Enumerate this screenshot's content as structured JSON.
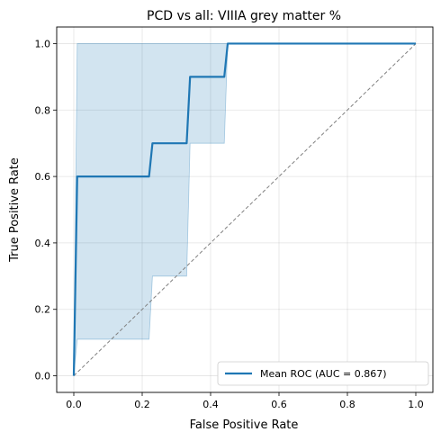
{
  "chart_data": {
    "type": "line",
    "title": "PCD vs all: VIIIA grey matter %",
    "xlabel": "False Positive Rate",
    "ylabel": "True Positive Rate",
    "xlim": [
      -0.05,
      1.05
    ],
    "ylim": [
      -0.05,
      1.05
    ],
    "xticks": [
      "0.0",
      "0.2",
      "0.4",
      "0.6",
      "0.8",
      "1.0"
    ],
    "yticks": [
      "0.0",
      "0.2",
      "0.4",
      "0.6",
      "0.8",
      "1.0"
    ],
    "grid": true,
    "legend_position": "lower-right",
    "series": [
      {
        "name": "Mean ROC (AUC = 0.867)",
        "color": "#1f77b4",
        "x": [
          0.0,
          0.01,
          0.22,
          0.23,
          0.33,
          0.34,
          0.44,
          0.45,
          1.0
        ],
        "y": [
          0.0,
          0.6,
          0.6,
          0.7,
          0.7,
          0.9,
          0.9,
          1.0,
          1.0
        ]
      }
    ],
    "band": {
      "color": "#1f77b4",
      "opacity": 0.2,
      "x": [
        0.0,
        0.01,
        0.22,
        0.23,
        0.33,
        0.34,
        0.44,
        0.45,
        1.0
      ],
      "upper": [
        0.0,
        1.0,
        1.0,
        1.0,
        1.0,
        1.0,
        1.0,
        1.0,
        1.0
      ],
      "lower": [
        0.0,
        0.11,
        0.11,
        0.3,
        0.3,
        0.7,
        0.7,
        1.0,
        1.0
      ]
    },
    "reference_line": {
      "x": [
        0,
        1
      ],
      "y": [
        0,
        1
      ],
      "color": "#808080",
      "style": "dashed"
    }
  }
}
